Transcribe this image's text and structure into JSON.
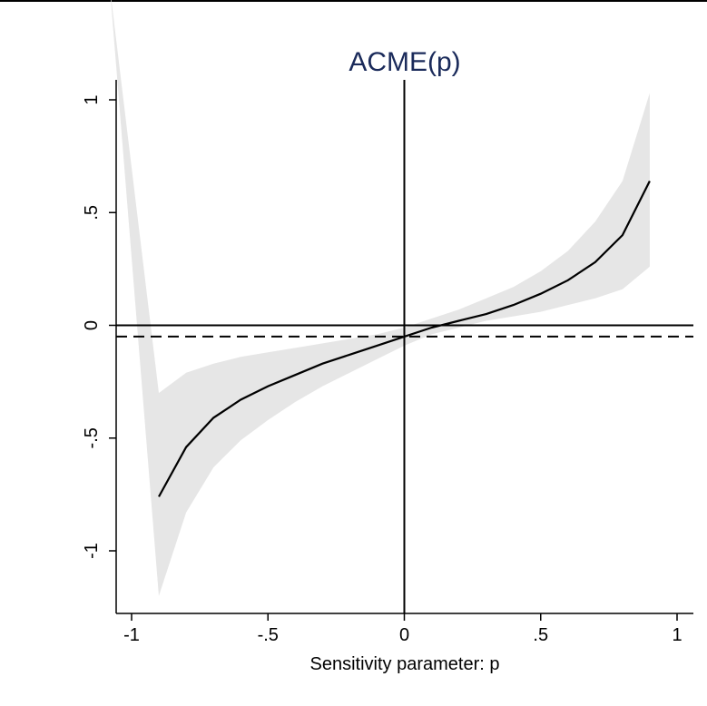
{
  "chart_data": {
    "type": "line",
    "title": "ACME(p)",
    "xlabel": "Sensitivity parameter: p",
    "ylabel": "",
    "xlim": [
      -1.05,
      1.05
    ],
    "ylim": [
      -1.28,
      1.08
    ],
    "x_ticks": [
      -1,
      -0.5,
      0,
      0.5,
      1
    ],
    "x_tick_labels": [
      "-1",
      "-.5",
      "0",
      ".5",
      "1"
    ],
    "y_ticks": [
      -1,
      -0.5,
      0,
      0.5,
      1
    ],
    "y_tick_labels": [
      "-1",
      "-.5",
      "0",
      ".5",
      "1"
    ],
    "grid": false,
    "legend": "none",
    "series": [
      {
        "type": "line",
        "style": "solid",
        "x": [
          -0.9,
          -0.8,
          -0.7,
          -0.6,
          -0.5,
          -0.4,
          -0.3,
          -0.2,
          -0.1,
          0.0,
          0.1,
          0.2,
          0.3,
          0.4,
          0.5,
          0.6,
          0.7,
          0.8,
          0.9
        ],
        "y": [
          -0.76,
          -0.54,
          -0.41,
          -0.33,
          -0.27,
          -0.22,
          -0.17,
          -0.13,
          -0.09,
          -0.05,
          -0.01,
          0.02,
          0.05,
          0.09,
          0.14,
          0.2,
          0.28,
          0.4,
          0.64
        ]
      }
    ],
    "band": {
      "x": [
        -1.08,
        -0.9,
        -0.8,
        -0.7,
        -0.6,
        -0.5,
        -0.4,
        -0.3,
        -0.2,
        -0.1,
        0.0,
        0.1,
        0.2,
        0.3,
        0.4,
        0.5,
        0.6,
        0.7,
        0.8,
        0.9
      ],
      "upper": [
        1.5,
        -0.3,
        -0.21,
        -0.17,
        -0.14,
        -0.12,
        -0.1,
        -0.08,
        -0.06,
        -0.04,
        -0.01,
        0.03,
        0.07,
        0.12,
        0.17,
        0.24,
        0.33,
        0.46,
        0.64,
        1.03
      ],
      "lower": [
        1.5,
        -1.2,
        -0.83,
        -0.63,
        -0.51,
        -0.42,
        -0.34,
        -0.27,
        -0.21,
        -0.15,
        -0.09,
        -0.04,
        -0.01,
        0.02,
        0.04,
        0.06,
        0.09,
        0.12,
        0.16,
        0.26
      ]
    },
    "reference_lines": [
      {
        "orientation": "horizontal",
        "value": 0,
        "style": "solid"
      },
      {
        "orientation": "vertical",
        "value": 0,
        "style": "solid"
      },
      {
        "orientation": "horizontal",
        "value": -0.05,
        "style": "dashed"
      }
    ],
    "colors": {
      "line": "#000000",
      "band": "#e6e6e6",
      "title": "#1a2a5a"
    }
  }
}
